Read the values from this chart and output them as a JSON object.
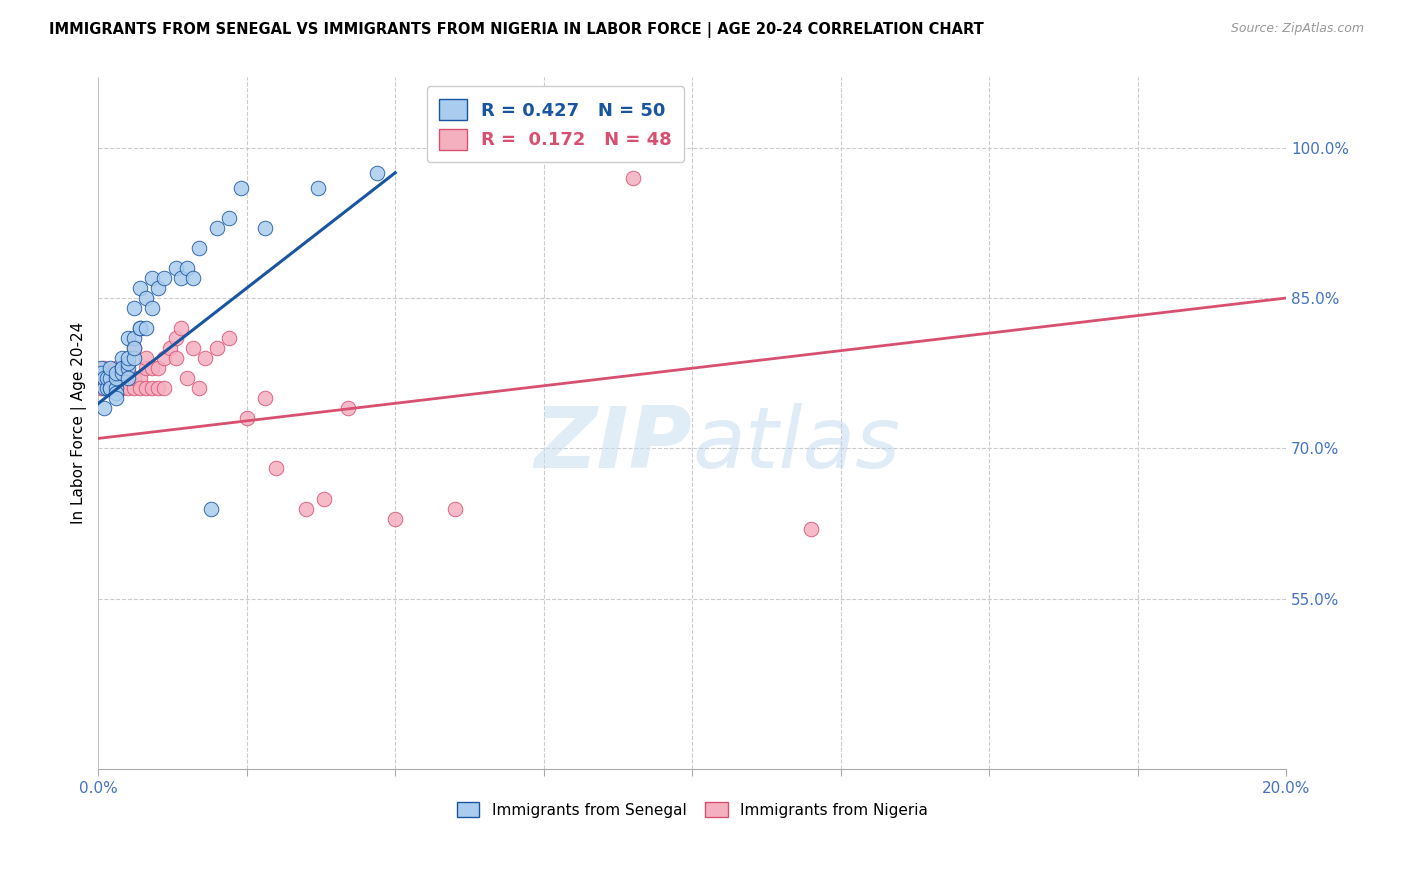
{
  "title": "IMMIGRANTS FROM SENEGAL VS IMMIGRANTS FROM NIGERIA IN LABOR FORCE | AGE 20-24 CORRELATION CHART",
  "source": "Source: ZipAtlas.com",
  "ylabel": "In Labor Force | Age 20-24",
  "r_senegal": 0.427,
  "n_senegal": 50,
  "r_nigeria": 0.172,
  "n_nigeria": 48,
  "color_senegal": "#AACCEE",
  "color_nigeria": "#F5B0C0",
  "trendline_senegal": "#1A55A0",
  "trendline_nigeria": "#D85070",
  "watermark_zip": "ZIP",
  "watermark_atlas": "atlas",
  "xlim_min": 0.0,
  "xlim_max": 0.2,
  "ylim_min": 0.38,
  "ylim_max": 1.07,
  "right_yticks": [
    0.55,
    0.7,
    0.85,
    1.0
  ],
  "right_yticklabels": [
    "55.0%",
    "70.0%",
    "85.0%",
    "100.0%"
  ],
  "senegal_x": [
    0.0005,
    0.0005,
    0.001,
    0.001,
    0.001,
    0.0015,
    0.0015,
    0.002,
    0.002,
    0.002,
    0.002,
    0.003,
    0.003,
    0.003,
    0.003,
    0.003,
    0.004,
    0.004,
    0.004,
    0.004,
    0.005,
    0.005,
    0.005,
    0.005,
    0.005,
    0.006,
    0.006,
    0.006,
    0.006,
    0.007,
    0.007,
    0.007,
    0.008,
    0.008,
    0.009,
    0.009,
    0.01,
    0.011,
    0.013,
    0.014,
    0.015,
    0.016,
    0.017,
    0.019,
    0.02,
    0.022,
    0.024,
    0.028,
    0.037,
    0.047
  ],
  "senegal_y": [
    0.78,
    0.775,
    0.76,
    0.77,
    0.74,
    0.76,
    0.77,
    0.76,
    0.77,
    0.78,
    0.76,
    0.76,
    0.755,
    0.75,
    0.77,
    0.775,
    0.78,
    0.79,
    0.775,
    0.78,
    0.78,
    0.785,
    0.79,
    0.81,
    0.77,
    0.79,
    0.81,
    0.84,
    0.8,
    0.82,
    0.82,
    0.86,
    0.82,
    0.85,
    0.84,
    0.87,
    0.86,
    0.87,
    0.88,
    0.87,
    0.88,
    0.87,
    0.9,
    0.64,
    0.92,
    0.93,
    0.96,
    0.92,
    0.96,
    0.975
  ],
  "nigeria_x": [
    0.0005,
    0.001,
    0.001,
    0.002,
    0.002,
    0.003,
    0.003,
    0.003,
    0.004,
    0.004,
    0.004,
    0.005,
    0.005,
    0.005,
    0.006,
    0.006,
    0.006,
    0.007,
    0.007,
    0.008,
    0.008,
    0.008,
    0.009,
    0.009,
    0.01,
    0.01,
    0.011,
    0.011,
    0.012,
    0.013,
    0.013,
    0.014,
    0.015,
    0.016,
    0.017,
    0.018,
    0.02,
    0.022,
    0.025,
    0.028,
    0.03,
    0.035,
    0.038,
    0.042,
    0.05,
    0.06,
    0.09,
    0.12
  ],
  "nigeria_y": [
    0.76,
    0.76,
    0.78,
    0.77,
    0.76,
    0.78,
    0.77,
    0.76,
    0.77,
    0.76,
    0.775,
    0.77,
    0.76,
    0.775,
    0.76,
    0.77,
    0.8,
    0.77,
    0.76,
    0.76,
    0.78,
    0.79,
    0.76,
    0.78,
    0.76,
    0.78,
    0.79,
    0.76,
    0.8,
    0.79,
    0.81,
    0.82,
    0.77,
    0.8,
    0.76,
    0.79,
    0.8,
    0.81,
    0.73,
    0.75,
    0.68,
    0.64,
    0.65,
    0.74,
    0.63,
    0.64,
    0.97,
    0.62
  ],
  "trendline_s_x0": 0.0,
  "trendline_s_y0": 0.745,
  "trendline_s_x1": 0.05,
  "trendline_s_y1": 0.975,
  "trendline_n_x0": 0.0,
  "trendline_n_y0": 0.71,
  "trendline_n_x1": 0.2,
  "trendline_n_y1": 0.85
}
